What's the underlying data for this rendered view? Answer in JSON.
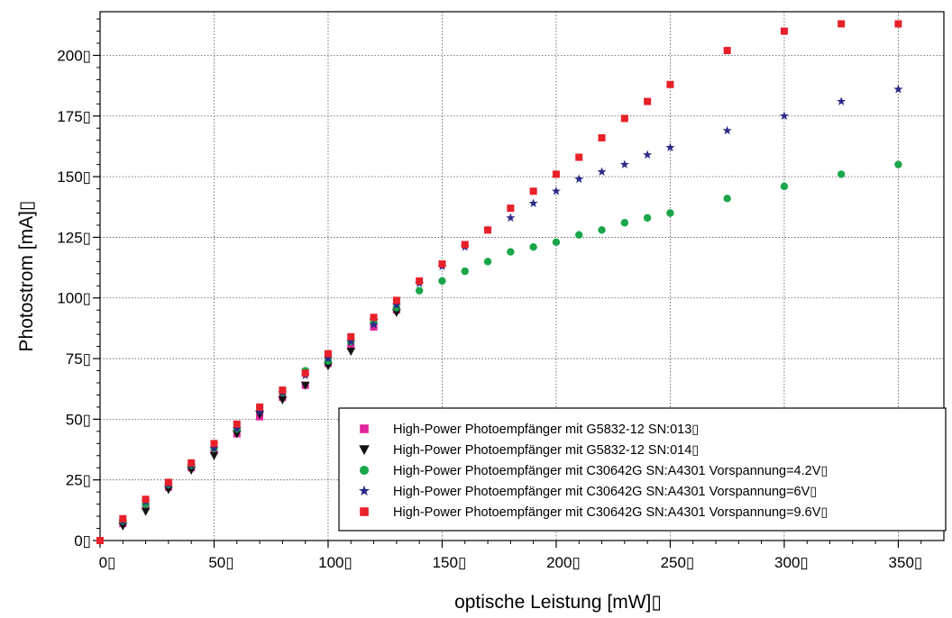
{
  "chart_data": {
    "type": "scatter",
    "title": "",
    "xlabel": "optische Leistung [mW]▯",
    "ylabel": "Photostrom [mA]▯",
    "xlim": [
      0,
      370
    ],
    "ylim": [
      0,
      218
    ],
    "x_ticks": [
      0,
      50,
      100,
      150,
      200,
      250,
      300,
      350
    ],
    "y_ticks": [
      0,
      25,
      50,
      75,
      100,
      125,
      150,
      175,
      200
    ],
    "x_tick_labels": [
      "0▯",
      "50▯",
      "100▯",
      "150▯",
      "200▯",
      "250▯",
      "300▯",
      "350▯"
    ],
    "y_tick_labels": [
      "0▯",
      "25▯",
      "50▯",
      "75▯",
      "100▯",
      "125▯",
      "150▯",
      "175▯",
      "200▯"
    ],
    "grid": true,
    "legend_position": "bottom-right",
    "series": [
      {
        "name": "High-Power Photoempfänger mit G5832-12 SN:013▯",
        "marker": "square",
        "color": "#e0249a",
        "x": [
          0,
          10,
          20,
          30,
          40,
          50,
          60,
          70,
          80,
          90,
          100,
          110,
          120,
          130
        ],
        "y": [
          0,
          7,
          14,
          22,
          30,
          37,
          44,
          51,
          59,
          64,
          73,
          80,
          88,
          95
        ]
      },
      {
        "name": "High-Power Photoempfänger mit G5832-12 SN:014▯",
        "marker": "triangle-down",
        "color": "#111111",
        "x": [
          10,
          20,
          30,
          40,
          50,
          60,
          70,
          80,
          90,
          100,
          110,
          120,
          130
        ],
        "y": [
          6,
          12,
          21,
          29,
          35,
          44,
          52,
          58,
          64,
          72,
          78,
          90,
          94
        ]
      },
      {
        "name": "High-Power Photoempfänger mit C30642G SN:A4301 Vorspannung=4.2V▯",
        "marker": "circle",
        "color": "#1aa64a",
        "x": [
          10,
          20,
          30,
          40,
          50,
          60,
          70,
          80,
          90,
          100,
          110,
          120,
          130,
          140,
          150,
          160,
          170,
          180,
          190,
          200,
          210,
          220,
          230,
          240,
          250,
          275,
          300,
          325,
          350
        ],
        "y": [
          8,
          15,
          23,
          31,
          38,
          46,
          55,
          61,
          70,
          74,
          82,
          90,
          96,
          103,
          107,
          111,
          115,
          119,
          121,
          123,
          126,
          128,
          131,
          133,
          135,
          141,
          146,
          151,
          155
        ]
      },
      {
        "name": "High-Power Photoempfänger mit C30642G SN:A4301 Vorspannung=6V▯",
        "marker": "star",
        "color": "#2a2a8a",
        "x": [
          10,
          20,
          30,
          40,
          50,
          60,
          70,
          80,
          90,
          100,
          110,
          120,
          130,
          140,
          150,
          160,
          170,
          180,
          190,
          200,
          210,
          220,
          230,
          240,
          250,
          275,
          300,
          325,
          350
        ],
        "y": [
          8,
          16,
          23,
          31,
          38,
          46,
          53,
          61,
          68,
          75,
          82,
          89,
          97,
          106,
          113,
          121,
          128,
          133,
          139,
          144,
          149,
          152,
          155,
          159,
          162,
          169,
          175,
          181,
          186
        ]
      },
      {
        "name": "High-Power Photoempfänger mit C30642G SN:A4301 Vorspannung=9.6V▯",
        "marker": "square",
        "color": "#e8202a",
        "x": [
          0,
          10,
          20,
          30,
          40,
          50,
          60,
          70,
          80,
          90,
          100,
          110,
          120,
          130,
          140,
          150,
          160,
          170,
          180,
          190,
          200,
          210,
          220,
          230,
          240,
          250,
          275,
          300,
          325,
          350
        ],
        "y": [
          0,
          9,
          17,
          24,
          32,
          40,
          48,
          55,
          62,
          69,
          77,
          84,
          92,
          99,
          107,
          114,
          122,
          128,
          137,
          144,
          151,
          158,
          166,
          174,
          181,
          188,
          202,
          210,
          213,
          213
        ]
      }
    ]
  }
}
